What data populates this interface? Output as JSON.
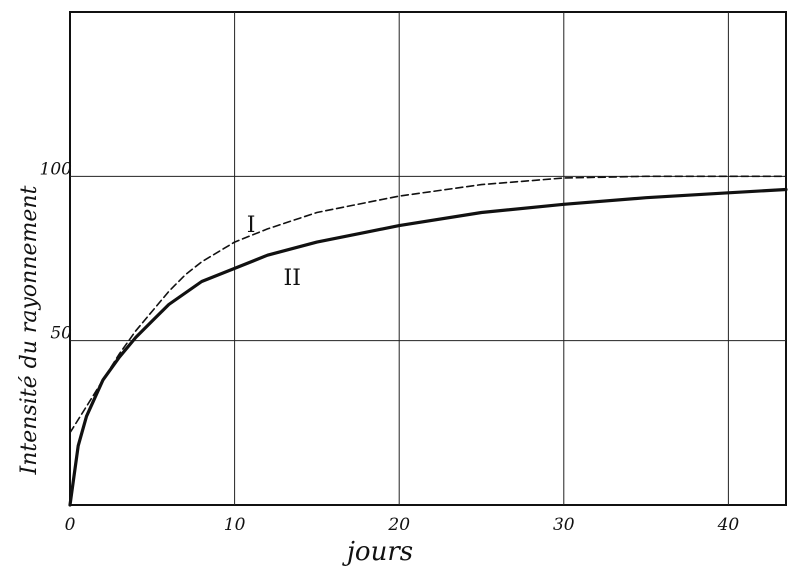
{
  "chart_data": {
    "type": "line",
    "xlabel": "jours",
    "ylabel": "Intensité du rayonnement",
    "xlim": [
      0,
      43.5
    ],
    "ylim": [
      0,
      150
    ],
    "x_ticks": [
      0,
      10,
      20,
      30,
      40
    ],
    "x_tick_labels": [
      "0",
      "10",
      "20",
      "30",
      "40"
    ],
    "y_ticks": [
      50,
      100
    ],
    "y_tick_labels": [
      "50",
      "100"
    ],
    "grid": true,
    "series": [
      {
        "name": "I",
        "style": "dashed",
        "points": [
          [
            0,
            22
          ],
          [
            1,
            30
          ],
          [
            2,
            38
          ],
          [
            3,
            46
          ],
          [
            4,
            53
          ],
          [
            5,
            59
          ],
          [
            6,
            65
          ],
          [
            7,
            70
          ],
          [
            8,
            74
          ],
          [
            10,
            80
          ],
          [
            12,
            84
          ],
          [
            15,
            89
          ],
          [
            18,
            92
          ],
          [
            20,
            94
          ],
          [
            25,
            97.5
          ],
          [
            30,
            99.5
          ],
          [
            35,
            100
          ],
          [
            40,
            100
          ],
          [
            43.5,
            100
          ]
        ]
      },
      {
        "name": "II",
        "style": "solid",
        "points": [
          [
            0,
            0
          ],
          [
            0.5,
            18
          ],
          [
            1,
            27
          ],
          [
            2,
            38
          ],
          [
            3,
            45
          ],
          [
            4,
            51
          ],
          [
            5,
            56
          ],
          [
            6,
            61
          ],
          [
            8,
            68
          ],
          [
            10,
            72
          ],
          [
            12,
            76
          ],
          [
            15,
            80
          ],
          [
            18,
            83
          ],
          [
            20,
            85
          ],
          [
            25,
            89
          ],
          [
            30,
            91.5
          ],
          [
            35,
            93.5
          ],
          [
            40,
            95
          ],
          [
            43.5,
            96
          ]
        ]
      }
    ]
  }
}
